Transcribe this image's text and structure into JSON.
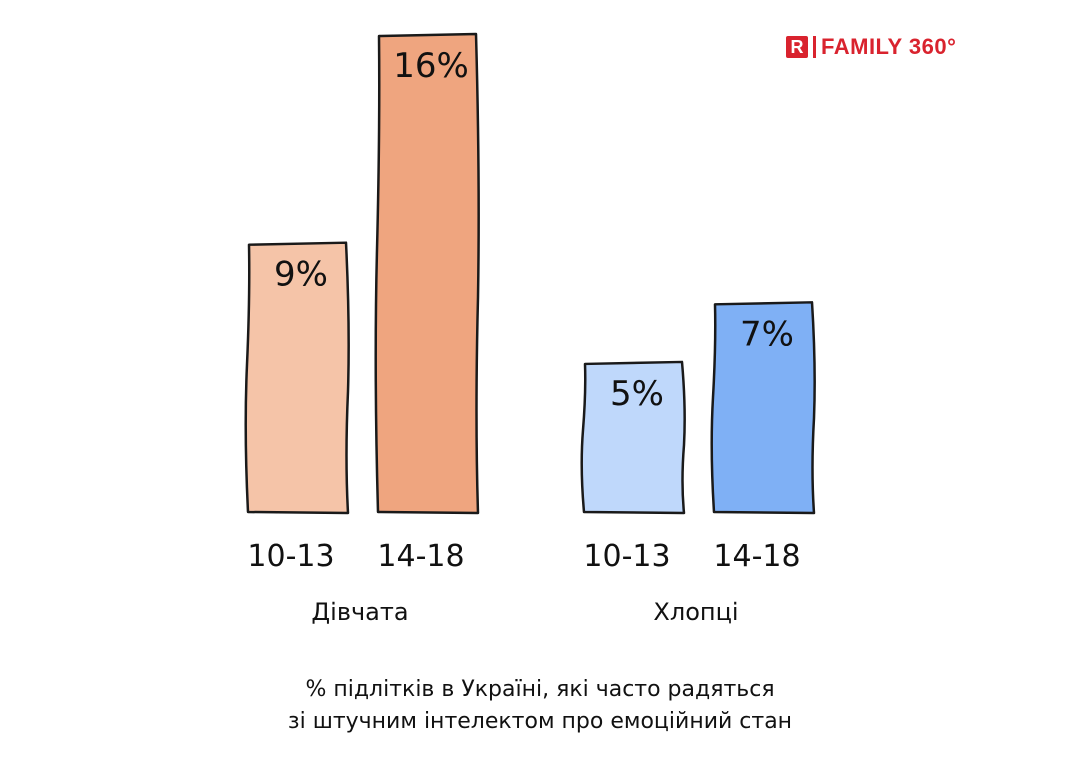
{
  "logo": {
    "mark": "R",
    "text": "FAMILY 360°"
  },
  "caption": {
    "line1": "% підлітків в Україні, які часто радяться",
    "line2": "зі штучним інтелектом про емоційний стан"
  },
  "colors": {
    "girls_10_13": "#f5c4a8",
    "girls_14_18": "#efa57f",
    "boys_10_13": "#bfd8fb",
    "boys_14_18": "#7fb0f5",
    "outline": "#1a1a1a",
    "brand": "#d9232e"
  },
  "chart_data": {
    "type": "bar",
    "groups": [
      {
        "name": "Дівчата",
        "bars": [
          {
            "category": "10-13",
            "value": 9,
            "label": "9%",
            "color": "#f5c4a8"
          },
          {
            "category": "14-18",
            "value": 16,
            "label": "16%",
            "color": "#efa57f"
          }
        ]
      },
      {
        "name": "Хлопці",
        "bars": [
          {
            "category": "10-13",
            "value": 5,
            "label": "5%",
            "color": "#bfd8fb"
          },
          {
            "category": "14-18",
            "value": 7,
            "label": "7%",
            "color": "#7fb0f5"
          }
        ]
      }
    ],
    "ylim": [
      0,
      16
    ],
    "grid": false,
    "legend": "none"
  }
}
